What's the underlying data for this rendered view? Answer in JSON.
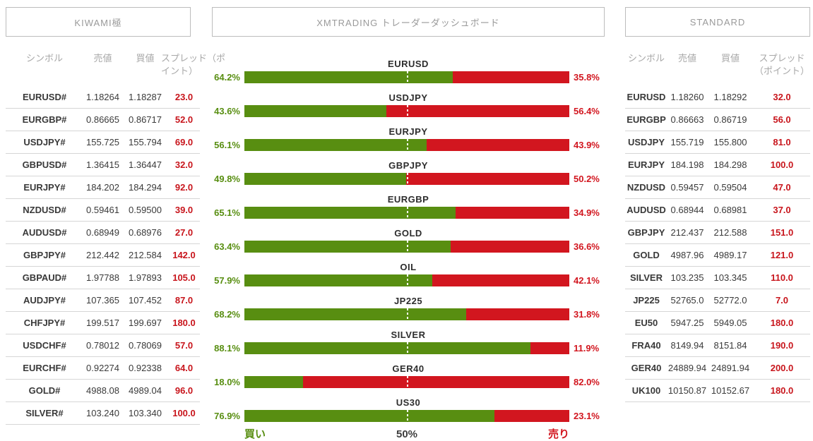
{
  "colors": {
    "buy_green": "#588e11",
    "sell_red": "#d2161f",
    "spread_value_red": "#c8151c",
    "header_gray": "#9a9a9a",
    "text_dark": "#3a3a3a",
    "border_gray": "#bcbcbc",
    "row_divider": "#d6d6d6"
  },
  "left_panel": {
    "title": "KIWAMI極",
    "columns": [
      "シンボル",
      "売値",
      "買値"
    ],
    "spread_column_lines": [
      "スプレッド（ポ",
      "イント）"
    ],
    "rows": [
      {
        "symbol": "EURUSD#",
        "sell": "1.18264",
        "buy": "1.18287",
        "spread": "23.0"
      },
      {
        "symbol": "EURGBP#",
        "sell": "0.86665",
        "buy": "0.86717",
        "spread": "52.0"
      },
      {
        "symbol": "USDJPY#",
        "sell": "155.725",
        "buy": "155.794",
        "spread": "69.0"
      },
      {
        "symbol": "GBPUSD#",
        "sell": "1.36415",
        "buy": "1.36447",
        "spread": "32.0"
      },
      {
        "symbol": "EURJPY#",
        "sell": "184.202",
        "buy": "184.294",
        "spread": "92.0"
      },
      {
        "symbol": "NZDUSD#",
        "sell": "0.59461",
        "buy": "0.59500",
        "spread": "39.0"
      },
      {
        "symbol": "AUDUSD#",
        "sell": "0.68949",
        "buy": "0.68976",
        "spread": "27.0"
      },
      {
        "symbol": "GBPJPY#",
        "sell": "212.442",
        "buy": "212.584",
        "spread": "142.0"
      },
      {
        "symbol": "GBPAUD#",
        "sell": "1.97788",
        "buy": "1.97893",
        "spread": "105.0"
      },
      {
        "symbol": "AUDJPY#",
        "sell": "107.365",
        "buy": "107.452",
        "spread": "87.0"
      },
      {
        "symbol": "CHFJPY#",
        "sell": "199.517",
        "buy": "199.697",
        "spread": "180.0"
      },
      {
        "symbol": "USDCHF#",
        "sell": "0.78012",
        "buy": "0.78069",
        "spread": "57.0"
      },
      {
        "symbol": "EURCHF#",
        "sell": "0.92274",
        "buy": "0.92338",
        "spread": "64.0"
      },
      {
        "symbol": "GOLD#",
        "sell": "4988.08",
        "buy": "4989.04",
        "spread": "96.0"
      },
      {
        "symbol": "SILVER#",
        "sell": "103.240",
        "buy": "103.340",
        "spread": "100.0"
      }
    ]
  },
  "right_panel": {
    "title": "STANDARD",
    "columns": [
      "シンボル",
      "売値",
      "買値"
    ],
    "spread_column_lines": [
      "スプレッド",
      "（ポイント）"
    ],
    "rows": [
      {
        "symbol": "EURUSD",
        "sell": "1.18260",
        "buy": "1.18292",
        "spread": "32.0"
      },
      {
        "symbol": "EURGBP",
        "sell": "0.86663",
        "buy": "0.86719",
        "spread": "56.0"
      },
      {
        "symbol": "USDJPY",
        "sell": "155.719",
        "buy": "155.800",
        "spread": "81.0"
      },
      {
        "symbol": "EURJPY",
        "sell": "184.198",
        "buy": "184.298",
        "spread": "100.0"
      },
      {
        "symbol": "NZDUSD",
        "sell": "0.59457",
        "buy": "0.59504",
        "spread": "47.0"
      },
      {
        "symbol": "AUDUSD",
        "sell": "0.68944",
        "buy": "0.68981",
        "spread": "37.0"
      },
      {
        "symbol": "GBPJPY",
        "sell": "212.437",
        "buy": "212.588",
        "spread": "151.0"
      },
      {
        "symbol": "GOLD",
        "sell": "4987.96",
        "buy": "4989.17",
        "spread": "121.0"
      },
      {
        "symbol": "SILVER",
        "sell": "103.235",
        "buy": "103.345",
        "spread": "110.0"
      },
      {
        "symbol": "JP225",
        "sell": "52765.0",
        "buy": "52772.0",
        "spread": "7.0"
      },
      {
        "symbol": "EU50",
        "sell": "5947.25",
        "buy": "5949.05",
        "spread": "180.0"
      },
      {
        "symbol": "FRA40",
        "sell": "8149.94",
        "buy": "8151.84",
        "spread": "190.0"
      },
      {
        "symbol": "GER40",
        "sell": "24889.94",
        "buy": "24891.94",
        "spread": "200.0"
      },
      {
        "symbol": "UK100",
        "sell": "10150.87",
        "buy": "10152.67",
        "spread": "180.0"
      }
    ]
  },
  "chart_data": {
    "type": "bar",
    "orientation": "horizontal-stacked",
    "title": "XMTRADING トレーダーダッシュボード",
    "categories": [
      "EURUSD",
      "USDJPY",
      "EURJPY",
      "GBPJPY",
      "EURGBP",
      "GOLD",
      "OIL",
      "JP225",
      "SILVER",
      "GER40",
      "US30"
    ],
    "series": [
      {
        "name": "買い",
        "color": "#588e11",
        "values": [
          64.2,
          43.6,
          56.1,
          49.8,
          65.1,
          63.4,
          57.9,
          68.2,
          88.1,
          18.0,
          76.9
        ]
      },
      {
        "name": "売り",
        "color": "#d2161f",
        "values": [
          35.8,
          56.4,
          43.9,
          50.2,
          34.9,
          36.6,
          42.1,
          31.8,
          11.9,
          82.0,
          23.1
        ]
      }
    ],
    "xlim": [
      0,
      100
    ],
    "midline": 50,
    "footer_labels": [
      "買い",
      "50%",
      "売り"
    ]
  }
}
